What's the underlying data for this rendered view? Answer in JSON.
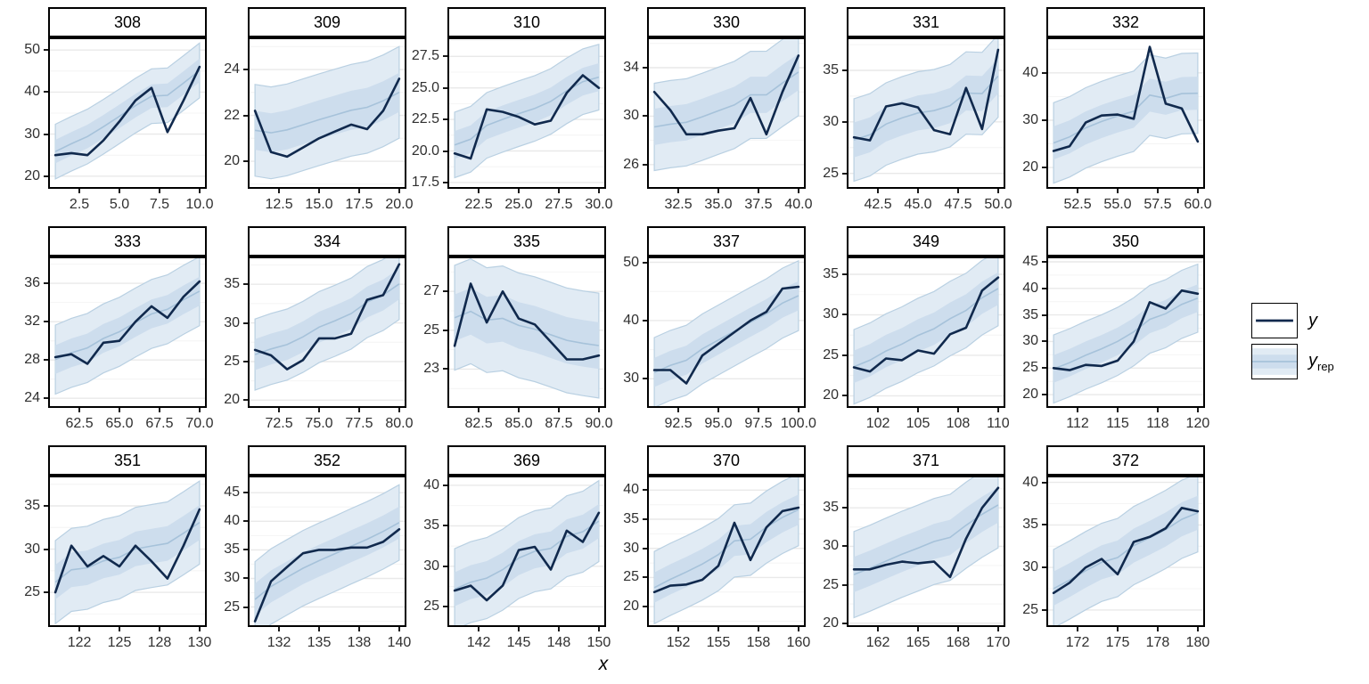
{
  "figure": {
    "xlabel": "x",
    "background": "#ffffff"
  },
  "legend": {
    "items": [
      {
        "label": "y",
        "type": "line"
      },
      {
        "label_base": "y",
        "label_sub": "rep",
        "type": "ribbon"
      }
    ]
  },
  "colors": {
    "line": "#10294d",
    "ribbon_outer_fill": "#e1ebf4",
    "ribbon_outer_stroke": "#b9d0e2",
    "ribbon_inner_fill": "#cddded",
    "ribbon_median": "#a6c2da",
    "grid_major": "#e9e9e9",
    "grid_minor": "#f4f4f4",
    "panel_border": "#000000",
    "tick_mark": "#1a1a1a",
    "tick_label": "#303030"
  },
  "chart_data": {
    "type": "line",
    "description": "Posterior predictive check: observed series y (dark line) with y_rep predictive ribbon (outer/inner intervals and median), faceted by group id",
    "xlabel": "x",
    "facets": [
      {
        "label": "308",
        "x_start": 1,
        "x_ticks": [
          2.5,
          5,
          7.5,
          10
        ],
        "x_tick_labels": [
          "2.5",
          "5.0",
          "7.5",
          "10.0"
        ],
        "y_ticks": [
          20,
          30,
          40,
          50
        ],
        "y_tick_labels": [
          "20",
          "30",
          "40",
          "50"
        ],
        "y_range": [
          17,
          53
        ],
        "y": [
          25,
          25.5,
          25,
          28.5,
          33,
          38,
          41,
          30.5,
          38,
          46
        ],
        "ribbon": {
          "c0": 26,
          "c1": 45,
          "outer": 6.5,
          "inner": 2.8
        }
      },
      {
        "label": "309",
        "x_start": 11,
        "x_ticks": [
          12.5,
          15,
          17.5,
          20
        ],
        "x_tick_labels": [
          "12.5",
          "15.0",
          "17.5",
          "20.0"
        ],
        "y_ticks": [
          20,
          22,
          24
        ],
        "y_tick_labels": [
          "20",
          "22",
          "24"
        ],
        "y_range": [
          18.8,
          25.4
        ],
        "y": [
          22.2,
          20.4,
          20.2,
          20.6,
          21.0,
          21.3,
          21.6,
          21.4,
          22.2,
          23.6
        ],
        "ribbon": {
          "c0": 21.2,
          "c1": 22.9,
          "outer": 2.0,
          "inner": 0.85
        }
      },
      {
        "label": "310",
        "x_start": 21,
        "x_ticks": [
          22.5,
          25,
          27.5,
          30
        ],
        "x_tick_labels": [
          "22.5",
          "25.0",
          "27.5",
          "30.0"
        ],
        "y_ticks": [
          17.5,
          20,
          22.5,
          25,
          27.5
        ],
        "y_tick_labels": [
          "17.5",
          "20.0",
          "22.5",
          "25.0",
          "27.5"
        ],
        "y_range": [
          17,
          29
        ],
        "y": [
          19.8,
          19.4,
          23.3,
          23.1,
          22.7,
          22.1,
          22.4,
          24.6,
          26.0,
          25.0
        ],
        "ribbon": {
          "c0": 20.6,
          "c1": 26.0,
          "outer": 2.6,
          "inner": 1.1
        }
      },
      {
        "label": "330",
        "x_start": 31,
        "x_ticks": [
          32.5,
          35,
          37.5,
          40
        ],
        "x_tick_labels": [
          "32.5",
          "35.0",
          "37.5",
          "40.0"
        ],
        "y_ticks": [
          26,
          30,
          34
        ],
        "y_tick_labels": [
          "26",
          "30",
          "34"
        ],
        "y_range": [
          24,
          36.5
        ],
        "y": [
          32,
          30.5,
          28.5,
          28.5,
          28.8,
          29,
          31.5,
          28.5,
          32,
          35
        ],
        "ribbon": {
          "c0": 28.6,
          "c1": 33.4,
          "outer": 3.6,
          "inner": 1.5
        }
      },
      {
        "label": "331",
        "x_start": 41,
        "x_ticks": [
          42.5,
          45,
          47.5,
          50
        ],
        "x_tick_labels": [
          "42.5",
          "45.0",
          "47.5",
          "50.0"
        ],
        "y_ticks": [
          25,
          30,
          35
        ],
        "y_tick_labels": [
          "25",
          "30",
          "35"
        ],
        "y_range": [
          23.5,
          38.2
        ],
        "y": [
          28.5,
          28.2,
          31.5,
          31.8,
          31.4,
          29.2,
          28.8,
          33.3,
          29.3,
          37
        ],
        "ribbon": {
          "c0": 28.2,
          "c1": 34.0,
          "outer": 4.0,
          "inner": 1.7
        }
      },
      {
        "label": "332",
        "x_start": 51,
        "x_ticks": [
          52.5,
          55,
          57.5,
          60
        ],
        "x_tick_labels": [
          "52.5",
          "55.0",
          "57.5",
          "60.0"
        ],
        "y_ticks": [
          20,
          30,
          40
        ],
        "y_tick_labels": [
          "20",
          "30",
          "40"
        ],
        "y_range": [
          15.5,
          47.5
        ],
        "y": [
          23.5,
          24.5,
          29.5,
          31,
          31.2,
          30.3,
          45.5,
          33.5,
          32.5,
          25.5
        ],
        "ribbon": {
          "c0": 25.5,
          "c1": 37.5,
          "outer": 8.5,
          "inner": 3.5
        }
      },
      {
        "label": "333",
        "x_start": 61,
        "x_ticks": [
          62.5,
          65,
          67.5,
          70
        ],
        "x_tick_labels": [
          "62.5",
          "65.0",
          "67.5",
          "70.0"
        ],
        "y_ticks": [
          24,
          28,
          32,
          36
        ],
        "y_tick_labels": [
          "24",
          "28",
          "32",
          "36"
        ],
        "y_range": [
          23,
          38.8
        ],
        "y": [
          28.3,
          28.6,
          27.6,
          29.8,
          30.0,
          32.0,
          33.6,
          32.4,
          34.6,
          36.2
        ],
        "ribbon": {
          "c0": 28.0,
          "c1": 35.0,
          "outer": 3.6,
          "inner": 1.5
        }
      },
      {
        "label": "334",
        "x_start": 71,
        "x_ticks": [
          72.5,
          75,
          77.5,
          80
        ],
        "x_tick_labels": [
          "72.5",
          "75.0",
          "77.5",
          "80.0"
        ],
        "y_ticks": [
          20,
          25,
          30,
          35
        ],
        "y_tick_labels": [
          "20",
          "25",
          "30",
          "35"
        ],
        "y_range": [
          19,
          38.6
        ],
        "y": [
          26.5,
          25.8,
          24.0,
          25.2,
          28.0,
          28.0,
          28.6,
          33.0,
          33.6,
          37.6
        ],
        "ribbon": {
          "c0": 25.8,
          "c1": 34.6,
          "outer": 4.6,
          "inner": 2.0
        }
      },
      {
        "label": "335",
        "x_start": 81,
        "x_ticks": [
          82.5,
          85,
          87.5,
          90
        ],
        "x_tick_labels": [
          "82.5",
          "85.0",
          "87.5",
          "90.0"
        ],
        "y_ticks": [
          23,
          25,
          27
        ],
        "y_tick_labels": [
          "23",
          "25",
          "27"
        ],
        "y_range": [
          21,
          28.8
        ],
        "y": [
          24.2,
          27.4,
          25.4,
          27.0,
          25.6,
          25.3,
          24.4,
          23.5,
          23.5,
          23.7
        ],
        "ribbon": {
          "c0": 25.9,
          "c1": 24.3,
          "outer": 2.7,
          "inner": 1.2
        }
      },
      {
        "label": "337",
        "x_start": 91,
        "x_ticks": [
          92.5,
          95,
          97.5,
          100
        ],
        "x_tick_labels": [
          "92.5",
          "95.0",
          "97.5",
          "100.0"
        ],
        "y_ticks": [
          30,
          40,
          50
        ],
        "y_tick_labels": [
          "30",
          "40",
          "50"
        ],
        "y_range": [
          25,
          51
        ],
        "y": [
          31.5,
          31.5,
          29.2,
          34.0,
          36.0,
          38.0,
          40.0,
          41.5,
          45.5,
          45.8
        ],
        "ribbon": {
          "c0": 31.0,
          "c1": 44.0,
          "outer": 6.0,
          "inner": 2.5
        }
      },
      {
        "label": "349",
        "x_start": 101,
        "x_ticks": [
          102.5,
          105,
          107.5,
          110
        ],
        "x_tick_labels": [
          "102",
          "105",
          "108",
          "110"
        ],
        "y_ticks": [
          20,
          25,
          30,
          35
        ],
        "y_tick_labels": [
          "20",
          "25",
          "30",
          "35"
        ],
        "y_range": [
          18.5,
          37.2
        ],
        "y": [
          23.5,
          23.0,
          24.6,
          24.4,
          25.6,
          25.2,
          27.6,
          28.4,
          33.0,
          34.6
        ],
        "ribbon": {
          "c0": 23.6,
          "c1": 33.0,
          "outer": 4.6,
          "inner": 2.0
        }
      },
      {
        "label": "350",
        "x_start": 111,
        "x_ticks": [
          112.5,
          115,
          117.5,
          120
        ],
        "x_tick_labels": [
          "112",
          "115",
          "118",
          "120"
        ],
        "y_ticks": [
          20,
          25,
          30,
          35,
          40,
          45
        ],
        "y_tick_labels": [
          "20",
          "25",
          "30",
          "35",
          "40",
          "45"
        ],
        "y_range": [
          17.5,
          46
        ],
        "y": [
          25.0,
          24.6,
          25.6,
          25.4,
          26.4,
          30.0,
          37.4,
          36.2,
          39.6,
          39.0
        ],
        "ribbon": {
          "c0": 24.8,
          "c1": 38.0,
          "outer": 6.4,
          "inner": 2.6
        }
      },
      {
        "label": "351",
        "x_start": 121,
        "x_ticks": [
          122.5,
          125,
          127.5,
          130
        ],
        "x_tick_labels": [
          "122",
          "125",
          "128",
          "130"
        ],
        "y_ticks": [
          25,
          30,
          35
        ],
        "y_tick_labels": [
          "25",
          "30",
          "35"
        ],
        "y_range": [
          21,
          38.5
        ],
        "y": [
          25.0,
          30.4,
          28.0,
          29.2,
          28.0,
          30.4,
          28.6,
          26.6,
          30.4,
          34.6
        ],
        "ribbon": {
          "c0": 26.4,
          "c1": 32.8,
          "outer": 4.8,
          "inner": 2.0
        }
      },
      {
        "label": "352",
        "x_start": 131,
        "x_ticks": [
          132.5,
          135,
          137.5,
          140
        ],
        "x_tick_labels": [
          "132",
          "135",
          "138",
          "140"
        ],
        "y_ticks": [
          25,
          30,
          35,
          40,
          45
        ],
        "y_tick_labels": [
          "25",
          "30",
          "35",
          "40",
          "45"
        ],
        "y_range": [
          21.5,
          48
        ],
        "y": [
          22.5,
          29.5,
          32.0,
          34.4,
          35.0,
          35.0,
          35.4,
          35.4,
          36.4,
          38.6
        ],
        "ribbon": {
          "c0": 27.0,
          "c1": 40.0,
          "outer": 6.6,
          "inner": 2.8
        }
      },
      {
        "label": "369",
        "x_start": 141,
        "x_ticks": [
          142.5,
          145,
          147.5,
          150
        ],
        "x_tick_labels": [
          "142",
          "145",
          "148",
          "150"
        ],
        "y_ticks": [
          25,
          30,
          35,
          40
        ],
        "y_tick_labels": [
          "25",
          "30",
          "35",
          "40"
        ],
        "y_range": [
          22.5,
          41.2
        ],
        "y": [
          27.0,
          27.6,
          25.8,
          27.6,
          32.0,
          32.4,
          29.6,
          34.4,
          33.0,
          36.6
        ],
        "ribbon": {
          "c0": 27.2,
          "c1": 35.4,
          "outer": 5.0,
          "inner": 2.1
        }
      },
      {
        "label": "370",
        "x_start": 151,
        "x_ticks": [
          152.5,
          155,
          157.5,
          160
        ],
        "x_tick_labels": [
          "152",
          "155",
          "158",
          "160"
        ],
        "y_ticks": [
          20,
          25,
          30,
          35,
          40
        ],
        "y_tick_labels": [
          "20",
          "25",
          "30",
          "35",
          "40"
        ],
        "y_range": [
          16.5,
          42.5
        ],
        "y": [
          22.5,
          23.6,
          23.8,
          24.6,
          27.0,
          34.4,
          28.0,
          33.6,
          36.4,
          37.0
        ],
        "ribbon": {
          "c0": 23.4,
          "c1": 36.6,
          "outer": 6.2,
          "inner": 2.6
        }
      },
      {
        "label": "371",
        "x_start": 161,
        "x_ticks": [
          162.5,
          165,
          167.5,
          170
        ],
        "x_tick_labels": [
          "162",
          "165",
          "168",
          "170"
        ],
        "y_ticks": [
          20,
          25,
          30,
          35
        ],
        "y_tick_labels": [
          "20",
          "25",
          "30",
          "35"
        ],
        "y_range": [
          19.5,
          39.2
        ],
        "y": [
          27.0,
          27.0,
          27.6,
          28.0,
          27.8,
          28.0,
          26.0,
          31.0,
          35.0,
          37.6
        ],
        "ribbon": {
          "c0": 26.2,
          "c1": 35.0,
          "outer": 5.6,
          "inner": 2.3
        }
      },
      {
        "label": "372",
        "x_start": 171,
        "x_ticks": [
          172.5,
          175,
          177.5,
          180
        ],
        "x_tick_labels": [
          "172",
          "175",
          "178",
          "180"
        ],
        "y_ticks": [
          25,
          30,
          35,
          40
        ],
        "y_tick_labels": [
          "25",
          "30",
          "35",
          "40"
        ],
        "y_range": [
          23,
          40.8
        ],
        "y": [
          27.0,
          28.2,
          30.0,
          31.0,
          29.2,
          33.0,
          33.6,
          34.6,
          37.0,
          36.6
        ],
        "ribbon": {
          "c0": 27.6,
          "c1": 36.4,
          "outer": 4.6,
          "inner": 2.0
        }
      }
    ]
  }
}
